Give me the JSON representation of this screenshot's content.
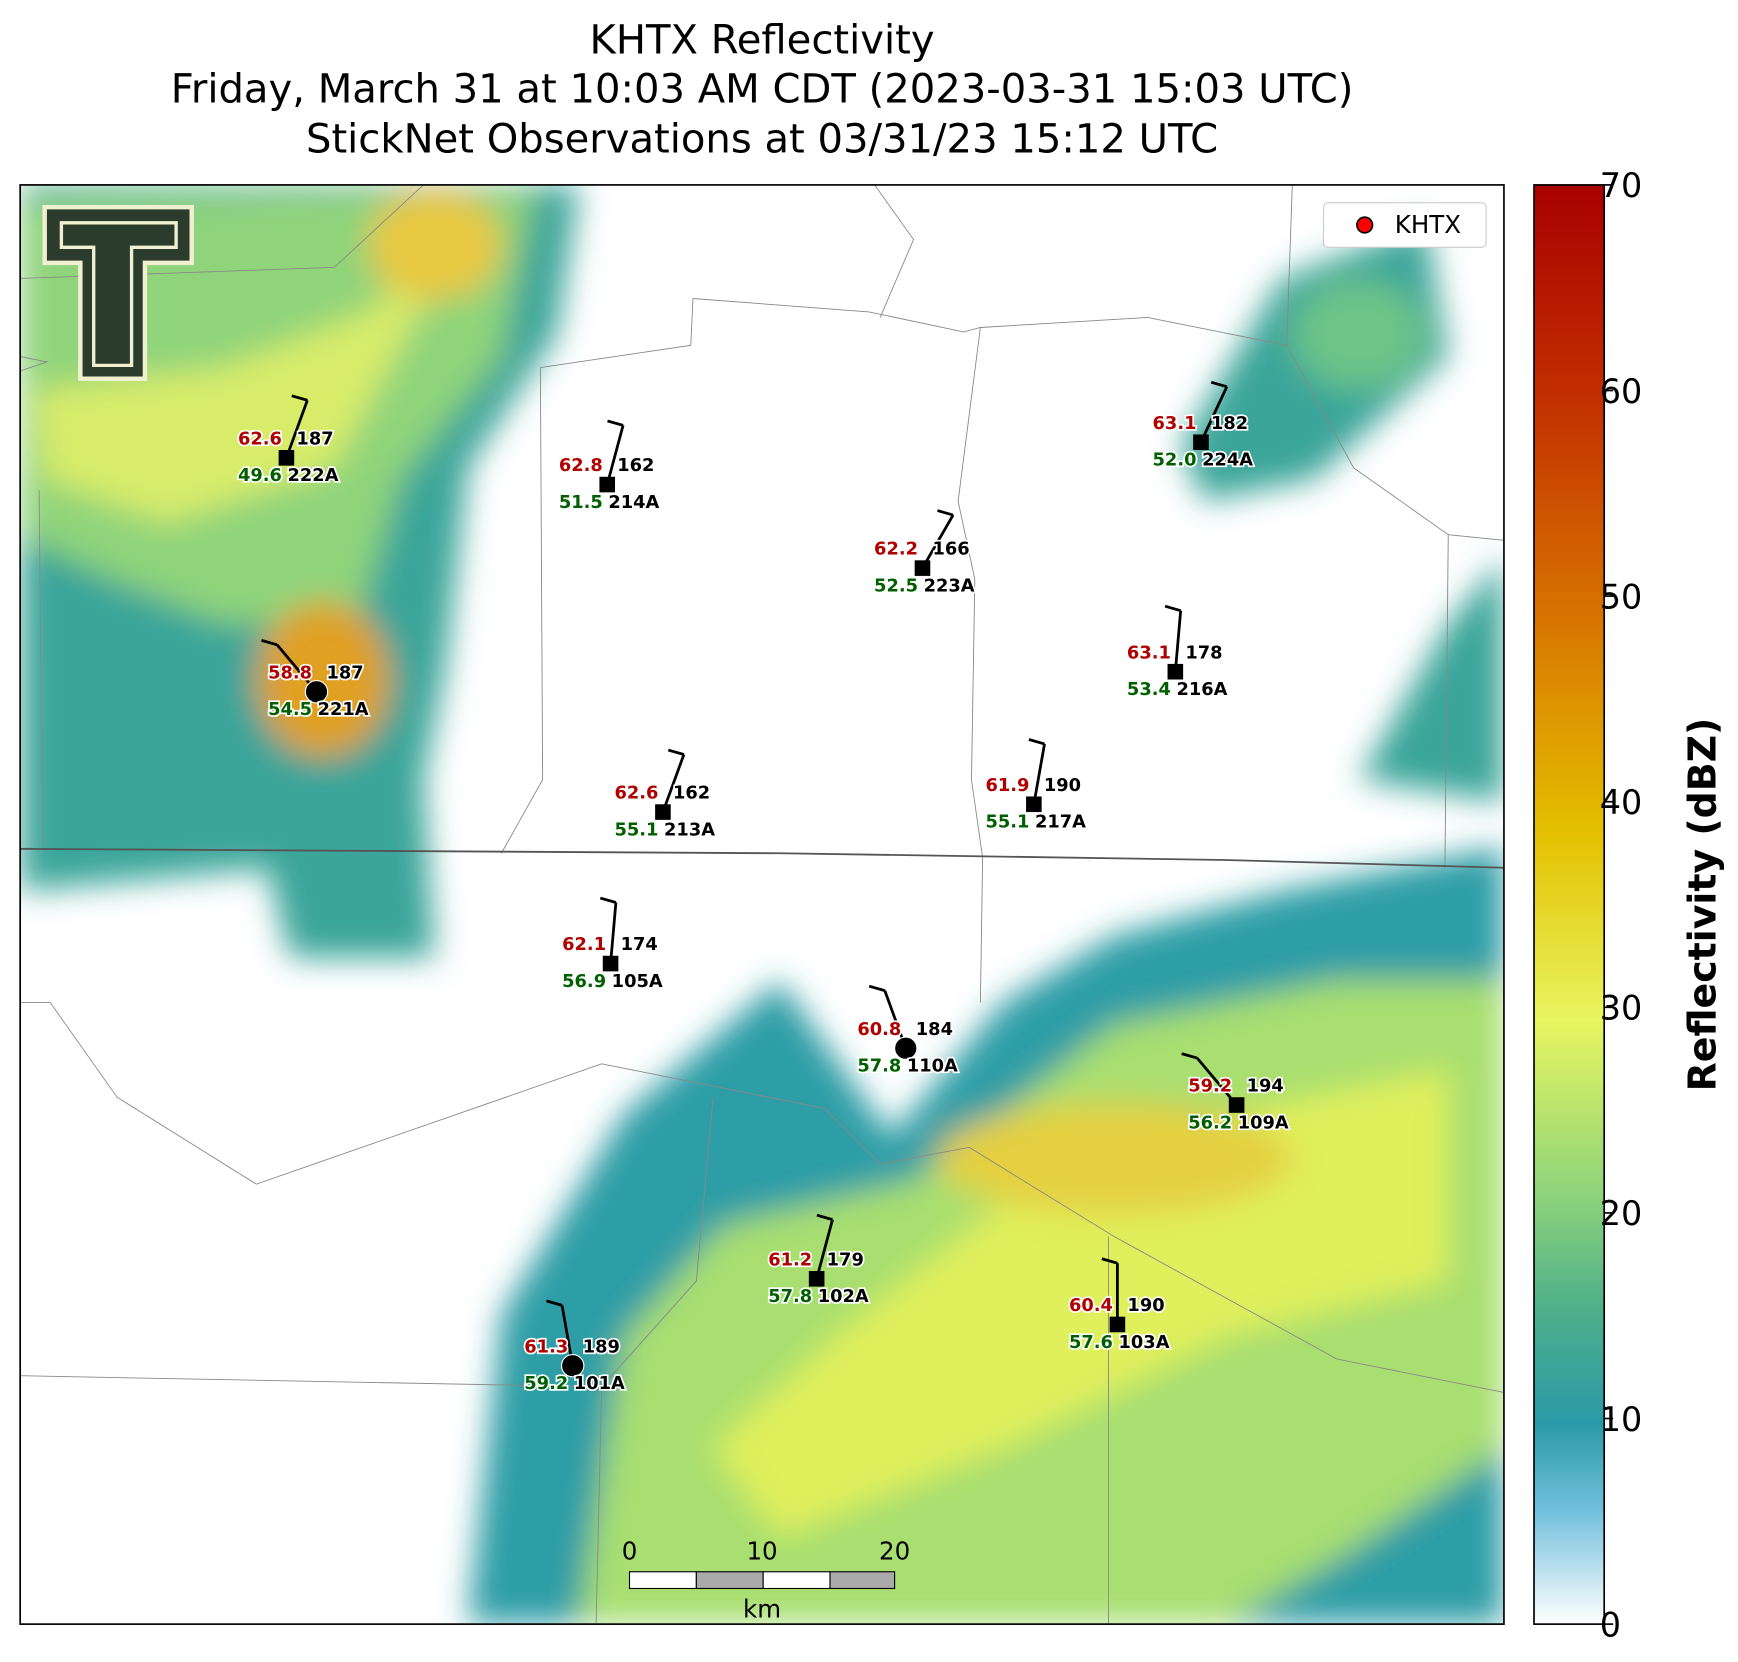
{
  "title": [
    "KHTX Reflectivity",
    "Friday, March 31 at 10:03 AM CDT (2023-03-31 15:03 UTC)",
    "StickNet Observations at 03/31/23 15:12 UTC"
  ],
  "legend": {
    "label": "KHTX",
    "color": "#ff0000"
  },
  "colorbar": {
    "label": "Reflectivity (dBZ)",
    "lim": [
      0,
      70
    ],
    "ticks": [
      0,
      10,
      20,
      30,
      40,
      50,
      60,
      70
    ]
  },
  "scale_bar": {
    "ticks": [
      0,
      10,
      20
    ],
    "unit": "km"
  },
  "stations": [
    {
      "temp": "62.6",
      "dew": "49.6",
      "pressure": "187",
      "id": "222A"
    },
    {
      "temp": "62.8",
      "dew": "51.5",
      "pressure": "162",
      "id": "214A"
    },
    {
      "temp": "62.2",
      "dew": "52.5",
      "pressure": "166",
      "id": "223A"
    },
    {
      "temp": "63.1",
      "dew": "52.0",
      "pressure": "182",
      "id": "224A"
    },
    {
      "temp": "63.1",
      "dew": "53.4",
      "pressure": "178",
      "id": "216A"
    },
    {
      "temp": "58.8",
      "dew": "54.5",
      "pressure": "187",
      "id": "221A"
    },
    {
      "temp": "62.6",
      "dew": "55.1",
      "pressure": "162",
      "id": "213A"
    },
    {
      "temp": "61.9",
      "dew": "55.1",
      "pressure": "190",
      "id": "217A"
    },
    {
      "temp": "62.1",
      "dew": "56.9",
      "pressure": "174",
      "id": "105A"
    },
    {
      "temp": "60.8",
      "dew": "57.8",
      "pressure": "184",
      "id": "110A"
    },
    {
      "temp": "59.2",
      "dew": "56.2",
      "pressure": "194",
      "id": "109A"
    },
    {
      "temp": "61.2",
      "dew": "57.8",
      "pressure": "179",
      "id": "102A"
    },
    {
      "temp": "60.4",
      "dew": "57.6",
      "pressure": "190",
      "id": "103A"
    },
    {
      "temp": "61.3",
      "dew": "59.2",
      "pressure": "189",
      "id": "101A"
    }
  ]
}
